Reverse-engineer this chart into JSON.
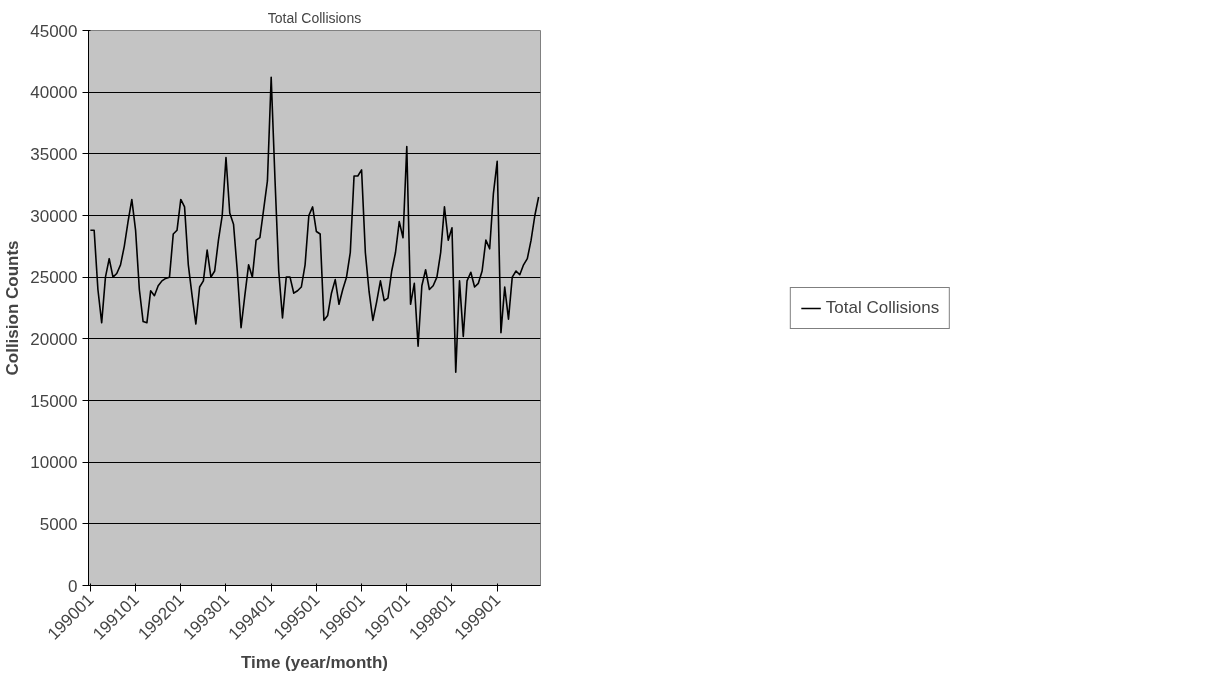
{
  "chart_data": {
    "type": "line",
    "title": "Total Collisions",
    "xlabel": "Time (year/month)",
    "ylabel": "Collision Counts",
    "categories": [
      "199001",
      null,
      null,
      null,
      null,
      null,
      null,
      null,
      null,
      null,
      null,
      null,
      "199101",
      null,
      null,
      null,
      null,
      null,
      null,
      null,
      null,
      null,
      null,
      null,
      "199201",
      null,
      null,
      null,
      null,
      null,
      null,
      null,
      null,
      null,
      null,
      null,
      "199301",
      null,
      null,
      null,
      null,
      null,
      null,
      null,
      null,
      null,
      null,
      null,
      "199401",
      null,
      null,
      null,
      null,
      null,
      null,
      null,
      null,
      null,
      null,
      null,
      "199501",
      null,
      null,
      null,
      null,
      null,
      null,
      null,
      null,
      null,
      null,
      null,
      "199601",
      null,
      null,
      null,
      null,
      null,
      null,
      null,
      null,
      null,
      null,
      null,
      "199701",
      null,
      null,
      null,
      null,
      null,
      null,
      null,
      null,
      null,
      null,
      null,
      "199801",
      null,
      null,
      null,
      null,
      null,
      null,
      null,
      null,
      null,
      null,
      null,
      "199901",
      null,
      null,
      null,
      null,
      null,
      null,
      null,
      null,
      null,
      null,
      null
    ],
    "series": [
      {
        "name": "Total Collisions",
        "color": "#000000",
        "values": [
          28800,
          28800,
          24000,
          21300,
          25000,
          26500,
          25000,
          25300,
          26000,
          27500,
          29500,
          31300,
          28800,
          24000,
          21400,
          21300,
          23900,
          23500,
          24300,
          24700,
          24900,
          25000,
          28500,
          28800,
          31300,
          30700,
          26000,
          23500,
          21200,
          24200,
          24700,
          27200,
          25000,
          25500,
          28000,
          30000,
          34700,
          30200,
          29300,
          25500,
          20900,
          23500,
          26000,
          25000,
          28000,
          28200,
          30500,
          32800,
          41200,
          33000,
          25500,
          21700,
          25000,
          25000,
          23700,
          23900,
          24200,
          26000,
          30000,
          30700,
          28700,
          28500,
          21500,
          21900,
          23700,
          24800,
          22800,
          24000,
          25000,
          27000,
          33200,
          33200,
          33700,
          27000,
          23800,
          21500,
          23000,
          24700,
          23100,
          23300,
          25500,
          27000,
          29500,
          28200,
          35600,
          22800,
          24500,
          19400,
          24300,
          25600,
          24000,
          24300,
          25000,
          27000,
          30700,
          28000,
          29000,
          17300,
          24700,
          20200,
          24700,
          25400,
          24200,
          24500,
          25500,
          28000,
          27300,
          31800,
          34400,
          20500,
          24200,
          21600,
          25000,
          25500,
          25200,
          26000,
          26500,
          28000,
          30000,
          31500
        ]
      }
    ],
    "ylim": [
      0,
      45000
    ],
    "yticks": [
      0,
      5000,
      10000,
      15000,
      20000,
      25000,
      30000,
      35000,
      40000,
      45000
    ],
    "grid": "y",
    "legend": "right",
    "marker": "none",
    "line_style": "solid"
  }
}
